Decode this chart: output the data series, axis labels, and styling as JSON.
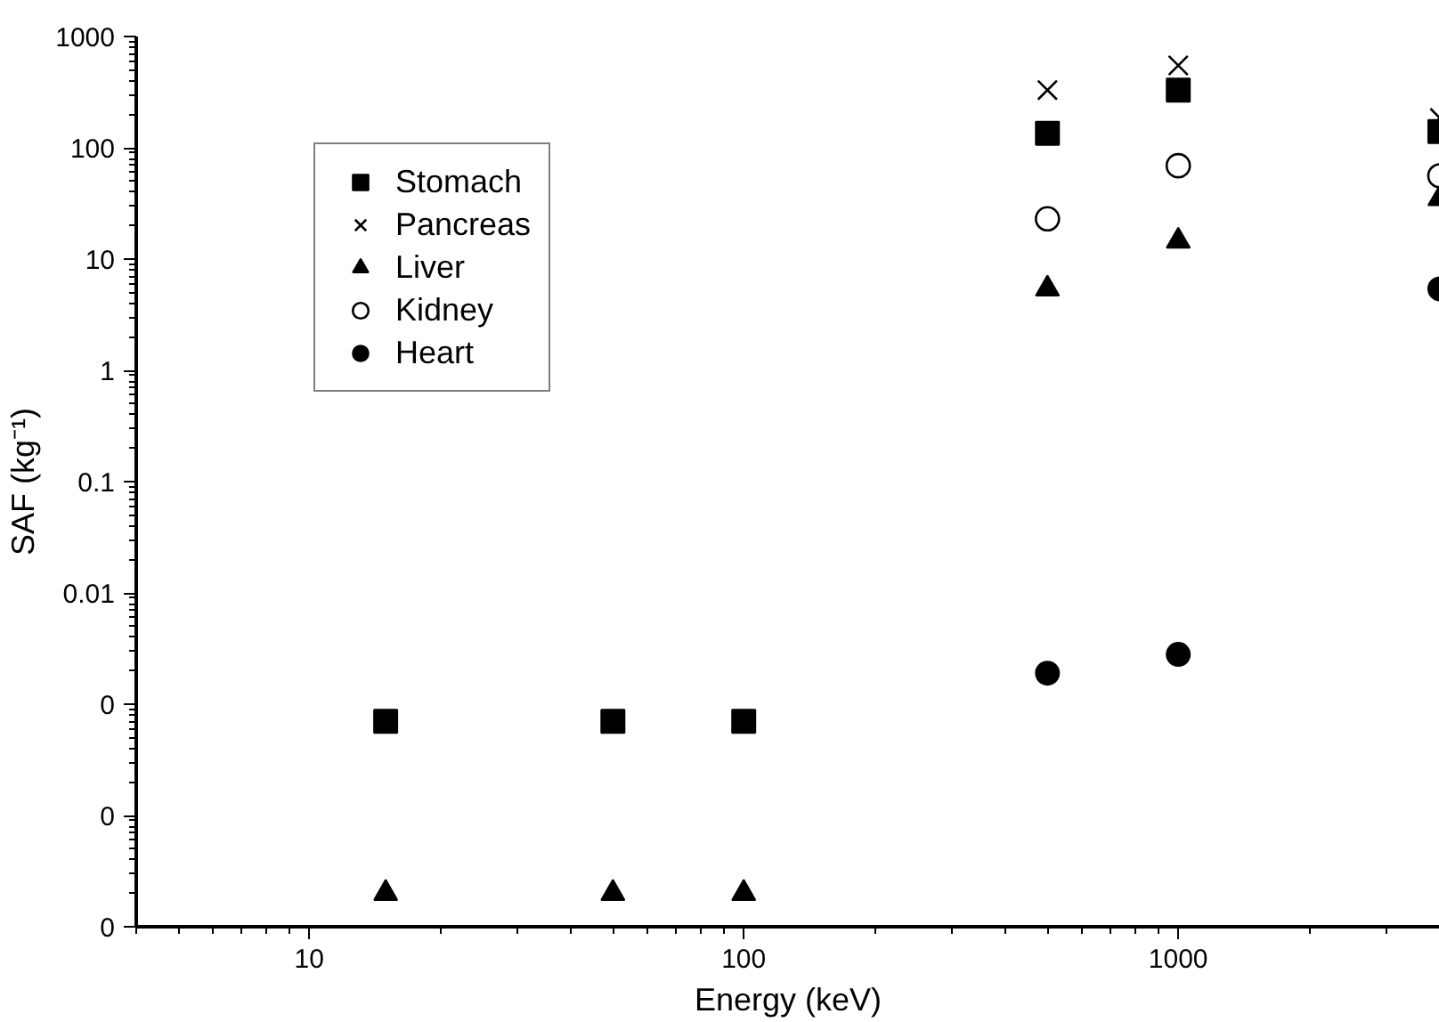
{
  "chart_data": {
    "type": "scatter",
    "xlabel": "Energy (keV)",
    "ylabel": "SAF (kg⁻¹)",
    "log": "xy",
    "legend": "top left",
    "grid": false,
    "xlim": [
      4,
      4000
    ],
    "xticks": [
      10,
      100,
      1000
    ],
    "ylim": [
      1e-05,
      1000
    ],
    "yticks": [
      {
        "value": 1e-05,
        "label": "0"
      },
      {
        "value": 0.0001,
        "label": "0"
      },
      {
        "value": 0.001,
        "label": "0"
      },
      0.01,
      0.1,
      1,
      10,
      100,
      1000
    ],
    "series": [
      {
        "name": "Stomach",
        "color": "#000000",
        "marker": "square",
        "x": [
          15,
          50,
          100,
          500,
          1000,
          4000
        ],
        "values": [
          0.0007,
          0.0007,
          0.0007,
          135,
          330,
          140
        ]
      },
      {
        "name": "Pancreas",
        "color": "#000000",
        "marker": "cross",
        "x": [
          500,
          1000,
          4000
        ],
        "values": [
          330,
          550,
          185
        ]
      },
      {
        "name": "Liver",
        "color": "#000000",
        "marker": "triangle",
        "x": [
          15,
          50,
          100,
          500,
          1000,
          4000
        ],
        "values": [
          2e-05,
          2e-05,
          2e-05,
          5.4,
          14.5,
          35
        ]
      },
      {
        "name": "Kidney",
        "color": "#000000",
        "marker": "circle_open",
        "x": [
          500,
          1000,
          4000
        ],
        "values": [
          23,
          69,
          56
        ]
      },
      {
        "name": "Heart",
        "color": "#000000",
        "marker": "circle",
        "x": [
          500,
          1000,
          4000
        ],
        "values": [
          0.0019,
          0.0028,
          5.4
        ]
      }
    ]
  }
}
